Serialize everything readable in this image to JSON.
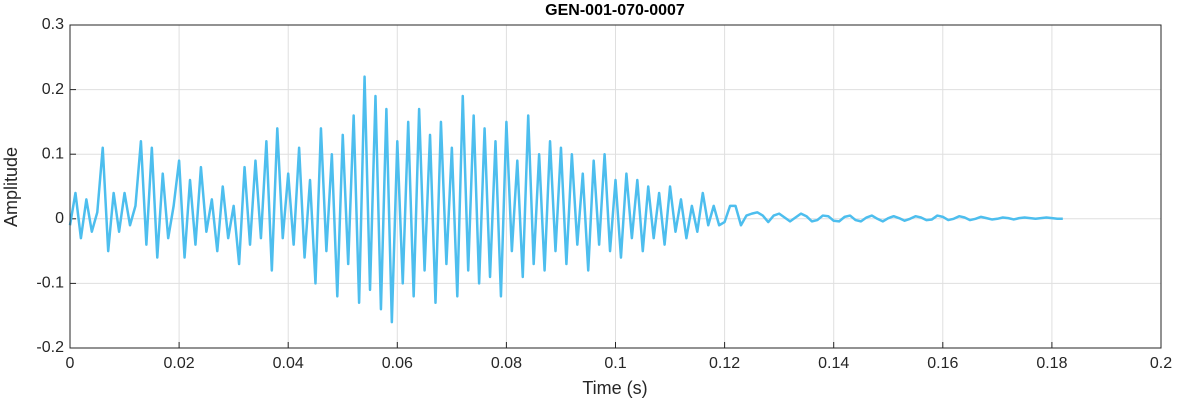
{
  "chart_data": {
    "type": "line",
    "title": "GEN-001-070-0007",
    "xlabel": "Time (s)",
    "ylabel": "Amplitude",
    "color": "#4DBEEE",
    "grid": true,
    "xlim": [
      0,
      0.2
    ],
    "ylim": [
      -0.2,
      0.3
    ],
    "xticks": [
      0,
      0.02,
      0.04,
      0.06,
      0.08,
      0.1,
      0.12,
      0.14,
      0.16,
      0.18,
      0.2
    ],
    "yticks": [
      -0.2,
      -0.1,
      0,
      0.1,
      0.2,
      0.3
    ],
    "x": [
      0,
      0.001,
      0.002,
      0.003,
      0.004,
      0.005,
      0.006,
      0.007,
      0.008,
      0.009,
      0.01,
      0.011,
      0.012,
      0.013,
      0.014,
      0.015,
      0.016,
      0.017,
      0.018,
      0.019,
      0.02,
      0.021,
      0.022,
      0.023,
      0.024,
      0.025,
      0.026,
      0.027,
      0.028,
      0.029,
      0.03,
      0.031,
      0.032,
      0.033,
      0.034,
      0.035,
      0.036,
      0.037,
      0.038,
      0.039,
      0.04,
      0.041,
      0.042,
      0.043,
      0.044,
      0.045,
      0.046,
      0.047,
      0.048,
      0.049,
      0.05,
      0.051,
      0.052,
      0.053,
      0.054,
      0.055,
      0.056,
      0.057,
      0.058,
      0.059,
      0.06,
      0.061,
      0.062,
      0.063,
      0.064,
      0.065,
      0.066,
      0.067,
      0.068,
      0.069,
      0.07,
      0.071,
      0.072,
      0.073,
      0.074,
      0.075,
      0.076,
      0.077,
      0.078,
      0.079,
      0.08,
      0.081,
      0.082,
      0.083,
      0.084,
      0.085,
      0.086,
      0.087,
      0.088,
      0.089,
      0.09,
      0.091,
      0.092,
      0.093,
      0.094,
      0.095,
      0.096,
      0.097,
      0.098,
      0.099,
      0.1,
      0.101,
      0.102,
      0.103,
      0.104,
      0.105,
      0.106,
      0.107,
      0.108,
      0.109,
      0.11,
      0.111,
      0.112,
      0.113,
      0.114,
      0.115,
      0.116,
      0.117,
      0.118,
      0.119,
      0.12,
      0.121,
      0.122,
      0.123,
      0.124,
      0.125,
      0.126,
      0.127,
      0.128,
      0.129,
      0.13,
      0.131,
      0.132,
      0.133,
      0.134,
      0.135,
      0.136,
      0.137,
      0.138,
      0.139,
      0.14,
      0.141,
      0.142,
      0.143,
      0.144,
      0.145,
      0.146,
      0.147,
      0.148,
      0.149,
      0.15,
      0.151,
      0.152,
      0.153,
      0.154,
      0.155,
      0.156,
      0.157,
      0.158,
      0.159,
      0.16,
      0.161,
      0.162,
      0.163,
      0.164,
      0.165,
      0.166,
      0.167,
      0.168,
      0.169,
      0.17,
      0.171,
      0.172,
      0.173,
      0.174,
      0.175,
      0.176,
      0.177,
      0.178,
      0.179,
      0.18,
      0.181,
      0.182
    ],
    "values": [
      -0.01,
      0.04,
      -0.03,
      0.03,
      -0.02,
      0.01,
      0.11,
      -0.05,
      0.04,
      -0.02,
      0.04,
      -0.01,
      0.02,
      0.12,
      -0.04,
      0.11,
      -0.06,
      0.07,
      -0.03,
      0.02,
      0.09,
      -0.06,
      0.06,
      -0.04,
      0.08,
      -0.02,
      0.03,
      -0.05,
      0.05,
      -0.03,
      0.02,
      -0.07,
      0.08,
      -0.04,
      0.09,
      -0.03,
      0.12,
      -0.08,
      0.14,
      -0.03,
      0.07,
      -0.04,
      0.11,
      -0.06,
      0.06,
      -0.1,
      0.14,
      -0.05,
      0.1,
      -0.12,
      0.13,
      -0.07,
      0.16,
      -0.13,
      0.22,
      -0.11,
      0.19,
      -0.14,
      0.17,
      -0.16,
      0.12,
      -0.1,
      0.15,
      -0.12,
      0.17,
      -0.08,
      0.13,
      -0.13,
      0.15,
      -0.07,
      0.11,
      -0.12,
      0.19,
      -0.08,
      0.16,
      -0.1,
      0.14,
      -0.09,
      0.12,
      -0.12,
      0.15,
      -0.05,
      0.09,
      -0.09,
      0.16,
      -0.07,
      0.1,
      -0.08,
      0.12,
      -0.05,
      0.11,
      -0.07,
      0.1,
      -0.04,
      0.07,
      -0.08,
      0.09,
      -0.04,
      0.1,
      -0.05,
      0.06,
      -0.06,
      0.07,
      -0.03,
      0.06,
      -0.05,
      0.05,
      -0.03,
      0.04,
      -0.04,
      0.05,
      -0.02,
      0.03,
      -0.03,
      0.02,
      -0.02,
      0.04,
      -0.01,
      0.02,
      -0.01,
      -0.005,
      0.02,
      0.02,
      -0.01,
      0.005,
      0.008,
      0.01,
      0.005,
      -0.005,
      0.005,
      0.008,
      0.002,
      -0.004,
      0.002,
      0.008,
      0.004,
      -0.004,
      -0.002,
      0.005,
      0.004,
      -0.003,
      -0.004,
      0.003,
      0.005,
      -0.002,
      -0.004,
      0.002,
      0.005,
      0,
      -0.004,
      0.001,
      0.004,
      0.001,
      -0.003,
      0,
      0.004,
      0.002,
      -0.002,
      -0.001,
      0.005,
      0.003,
      -0.002,
      0,
      0.004,
      0.002,
      -0.002,
      0,
      0.003,
      0.001,
      -0.001,
      0,
      0.002,
      0.001,
      -0.001,
      0.001,
      0.002,
      0.001,
      0,
      0.001,
      0.002,
      0.001,
      0,
      0
    ]
  }
}
